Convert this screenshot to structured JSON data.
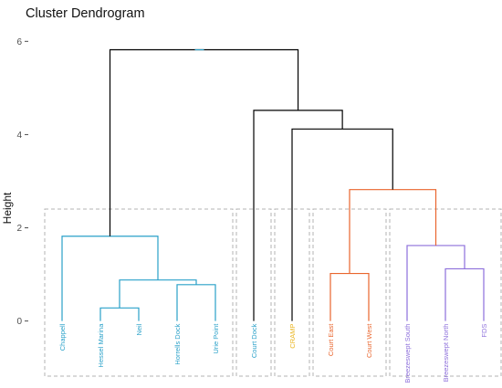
{
  "chart_data": {
    "type": "dendrogram",
    "title": "Cluster Dendrogram",
    "ylabel": "Height",
    "xlabel": "",
    "ylim": [
      -1.3,
      6.3
    ],
    "yticks": [
      "0",
      "2",
      "4",
      "6"
    ],
    "grid": false,
    "leaves": [
      "Chappell",
      "Hessel Marina",
      "Neil",
      "Horrells Dock",
      "Urie Point",
      "Court Dock",
      "CRAMP",
      "Court East",
      "Court West",
      "Breezeswept South",
      "Breezeswept North",
      "FDS"
    ],
    "merges": [
      {
        "a": "L1",
        "b": "L2",
        "height": 0.28
      },
      {
        "a": "L3",
        "b": "L4",
        "height": 0.78
      },
      {
        "a": "M0",
        "b": "M1",
        "height": 0.88
      },
      {
        "a": "L0",
        "b": "M2",
        "height": 1.82
      },
      {
        "a": "L7",
        "b": "L8",
        "height": 1.02
      },
      {
        "a": "L10",
        "b": "L11",
        "height": 1.12
      },
      {
        "a": "L9",
        "b": "M5",
        "height": 1.62
      },
      {
        "a": "M4",
        "b": "M6",
        "height": 2.82
      },
      {
        "a": "L6",
        "b": "M7",
        "height": 4.12
      },
      {
        "a": "L5",
        "b": "M8",
        "height": 4.52
      },
      {
        "a": "M3",
        "b": "M9",
        "height": 5.82
      }
    ],
    "clusters": [
      {
        "leaves": [
          0,
          1,
          2,
          3,
          4
        ],
        "color": "#2aa1c9"
      },
      {
        "leaves": [
          5
        ],
        "color": "#2aa1c9"
      },
      {
        "leaves": [
          6
        ],
        "color": "#eab51f"
      },
      {
        "leaves": [
          7,
          8
        ],
        "color": "#e9652d"
      },
      {
        "leaves": [
          9,
          10,
          11
        ],
        "color": "#8d6fdb"
      }
    ],
    "link_colors": {
      "M3": "#2aa1c9",
      "M9": "#000000",
      "M8": "#000000",
      "M7": "#e9652d",
      "root": "#2aa1c9"
    },
    "trunk_color": "#000000"
  }
}
